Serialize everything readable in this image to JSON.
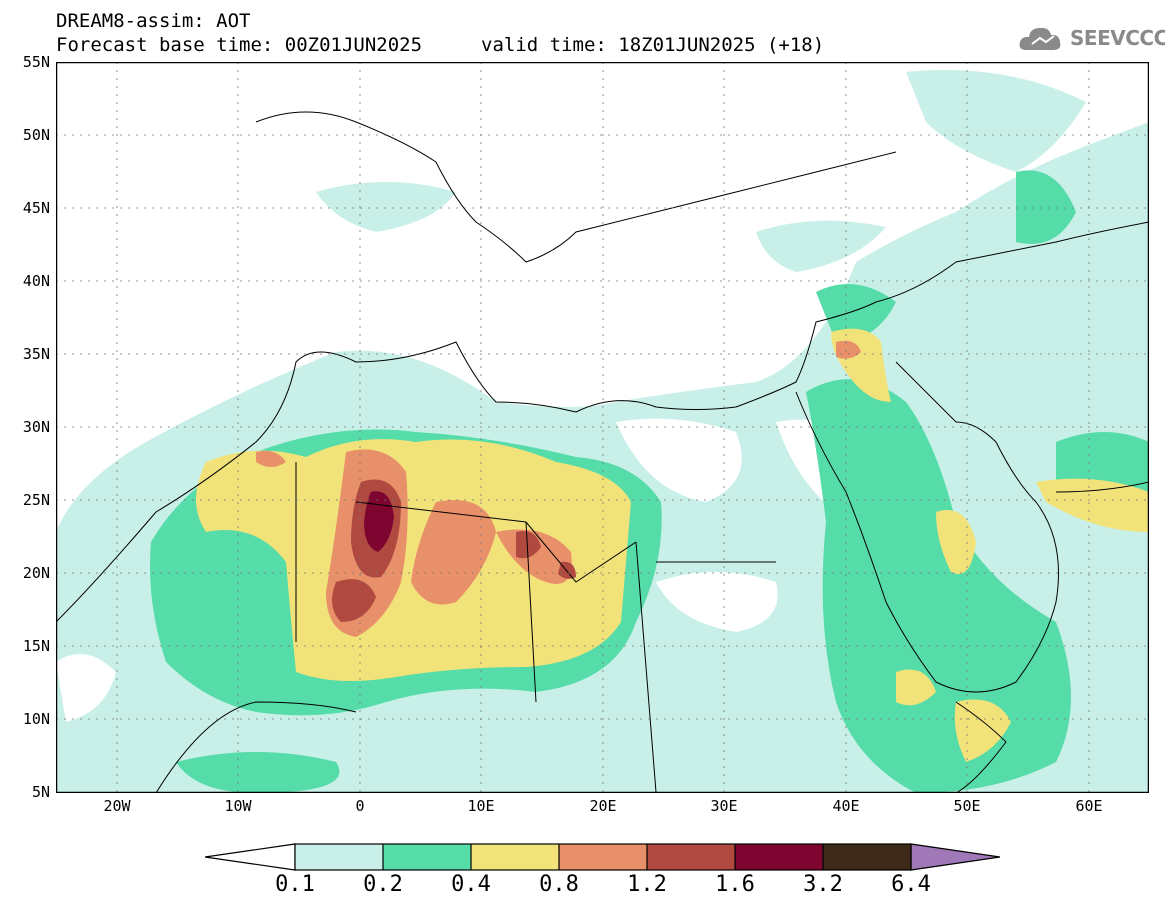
{
  "header": {
    "model_variable": "DREAM8-assim: AOT",
    "base_time": "Forecast base time: 00Z01JUN2025",
    "valid_time": "valid time: 18Z01JUN2025 (+18)"
  },
  "logo": {
    "text": "SEEVCCC",
    "icon": "cloud-icon"
  },
  "map": {
    "lat_labels": [
      "55N",
      "50N",
      "45N",
      "40N",
      "35N",
      "30N",
      "25N",
      "20N",
      "15N",
      "10N",
      "5N"
    ],
    "lon_labels": [
      "20W",
      "10W",
      "0",
      "10E",
      "20E",
      "30E",
      "40E",
      "50E",
      "60E"
    ],
    "lat_range": [
      5,
      55
    ],
    "lon_range": [
      -25,
      65
    ],
    "grid": "dotted"
  },
  "colorbar": {
    "labels": [
      "0.1",
      "0.2",
      "0.4",
      "0.8",
      "1.2",
      "1.6",
      "3.2",
      "6.4"
    ],
    "colors": [
      "#c8f0e8",
      "#55dca8",
      "#f2e27a",
      "#e8906a",
      "#b04a40",
      "#7e0530",
      "#3e2a18"
    ],
    "under_color": "#ffffff",
    "over_color": "#a078b8"
  },
  "legend_colors": {
    "c01": "#c8f0e8",
    "c02": "#55dca8",
    "c04": "#f2e27a",
    "c08": "#e8906a",
    "c12": "#b04a40",
    "c16": "#7e0530",
    "c32": "#3e2a18"
  }
}
